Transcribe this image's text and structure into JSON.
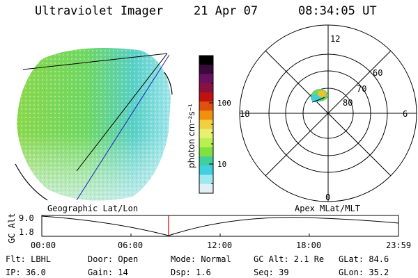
{
  "header": {
    "title": "Ultraviolet Imager",
    "date": "21 Apr 07",
    "time": "08:34:05 UT"
  },
  "colorbar": {
    "unit_label": "photon cm⁻²s⁻¹",
    "ticks": [
      "100",
      "10"
    ],
    "colors": [
      "#000000",
      "#3a0a3a",
      "#6a1060",
      "#8a1040",
      "#c01010",
      "#e05010",
      "#f09010",
      "#f0d040",
      "#e8f070",
      "#b8f050",
      "#80e040",
      "#40d0a0",
      "#40d0e0",
      "#a0e8f0",
      "#e0f0f4"
    ]
  },
  "polar": {
    "mlt_labels": {
      "top": "12",
      "left": "18",
      "right": "6",
      "bottom": "0"
    },
    "lat_labels": [
      "60",
      "70",
      "80"
    ]
  },
  "timeline": {
    "left_label": "Geographic Lat/Lon",
    "right_label": "Apex  MLat/MLT",
    "y_axis_title": "GC Alt",
    "y_ticks": [
      "9.0",
      "1.8"
    ],
    "x_ticks": [
      "00:00",
      "06:00",
      "12:00",
      "18:00",
      "23:59"
    ],
    "marker_color": "#d00000"
  },
  "info": {
    "flt": "Flt: LBHL",
    "ip": "IP: 36.0",
    "door": "Door: Open",
    "gain": "Gain: 14",
    "mode": "Mode: Normal",
    "dsp": "Dsp:   1.6",
    "gcalt": "GC Alt: 2.1 Re",
    "seq": "Seq: 39",
    "glat": "GLat:  84.6",
    "glon": "GLon:  35.2"
  }
}
